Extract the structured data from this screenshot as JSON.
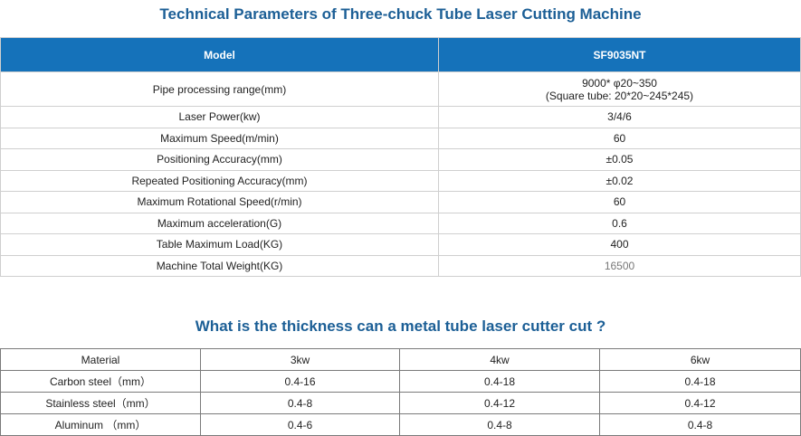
{
  "title1": "Technical Parameters of  Three-chuck Tube Laser Cutting Machine",
  "params": {
    "header": [
      "Model",
      "SF9035NT"
    ],
    "rows": [
      [
        "Pipe processing range(mm)",
        "9000* φ20~350",
        "(Square tube: 20*20~245*245)"
      ],
      [
        "Laser Power(kw)",
        "3/4/6"
      ],
      [
        "Maximum Speed(m/min)",
        "60"
      ],
      [
        "Positioning Accuracy(mm)",
        "±0.05"
      ],
      [
        "Repeated Positioning Accuracy(mm)",
        "±0.02"
      ],
      [
        "Maximum Rotational Speed(r/min)",
        "60"
      ],
      [
        "Maximum acceleration(G)",
        "0.6"
      ],
      [
        "Table Maximum Load(KG)",
        "400"
      ],
      [
        "Machine Total Weight(KG)",
        "16500"
      ]
    ]
  },
  "title2": "What is the thickness can a metal tube laser cutter cut ?",
  "thickness": {
    "header": [
      "Material",
      "3kw",
      "4kw",
      "6kw"
    ],
    "rows": [
      [
        "Carbon steel（mm）",
        "0.4-16",
        "0.4-18",
        "0.4-18"
      ],
      [
        "Stainless steel（mm）",
        "0.4-8",
        "0.4-12",
        "0.4-12"
      ],
      [
        "Aluminum （mm）",
        "0.4-6",
        "0.4-8",
        "0.4-8"
      ]
    ]
  }
}
